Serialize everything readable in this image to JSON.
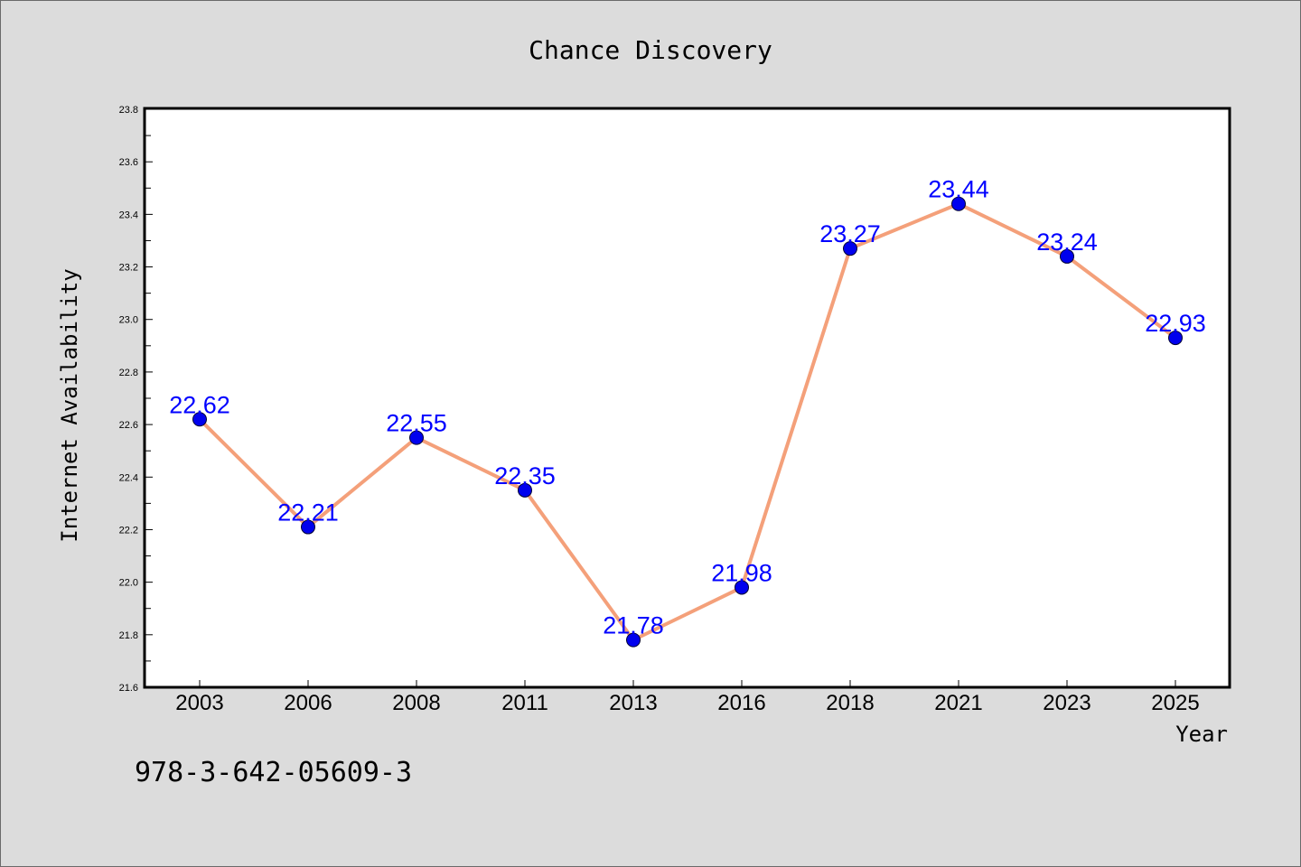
{
  "chart_data": {
    "type": "line",
    "title": "Chance Discovery",
    "xlabel": "Year",
    "ylabel": "Internet Availability",
    "categories": [
      "2003",
      "2006",
      "2008",
      "2011",
      "2013",
      "2016",
      "2018",
      "2021",
      "2023",
      "2025"
    ],
    "series": [
      {
        "values": [
          22.62,
          22.21,
          22.55,
          22.35,
          21.78,
          21.98,
          23.27,
          23.44,
          23.24,
          22.93
        ],
        "labels": [
          "22.62",
          "22.21",
          "22.55",
          "22.35",
          "21.78",
          "21.98",
          "23.27",
          "23.44",
          "23.24",
          "22.93"
        ],
        "line_color": "#f4a07a",
        "marker_color": "#0000ee",
        "label_color": "#0000ff"
      }
    ],
    "ylim": [
      21.6,
      23.8
    ],
    "yticks": [
      "21.6",
      "21.8",
      "22.0",
      "22.2",
      "22.4",
      "22.6",
      "22.8",
      "23.0",
      "23.2",
      "23.4",
      "23.6",
      "23.8"
    ],
    "grid": false,
    "legend": "none"
  },
  "footer": {
    "isbn": "978-3-642-05609-3"
  }
}
